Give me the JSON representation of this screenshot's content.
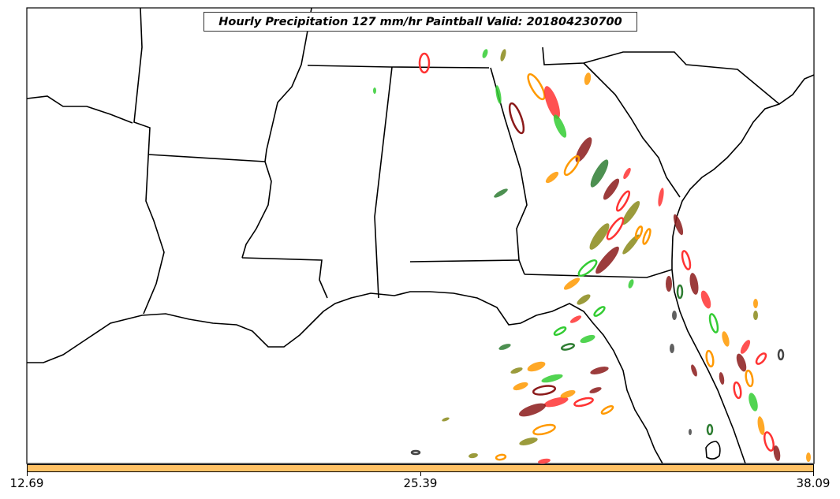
{
  "title": "Hourly Precipitation 127 mm/hr Paintball Valid: 201804230700",
  "colorbar": {
    "color": "#ffc266",
    "tick_labels": [
      "12.69",
      "25.39",
      "38.09"
    ]
  },
  "colors": {
    "green": "#33cc33",
    "red": "#ff3333",
    "orange": "#ff9900",
    "maroon": "#8b1a1a",
    "olive": "#8a8a1a",
    "darkgreen": "#2e7d32",
    "darkgray": "#444444"
  }
}
